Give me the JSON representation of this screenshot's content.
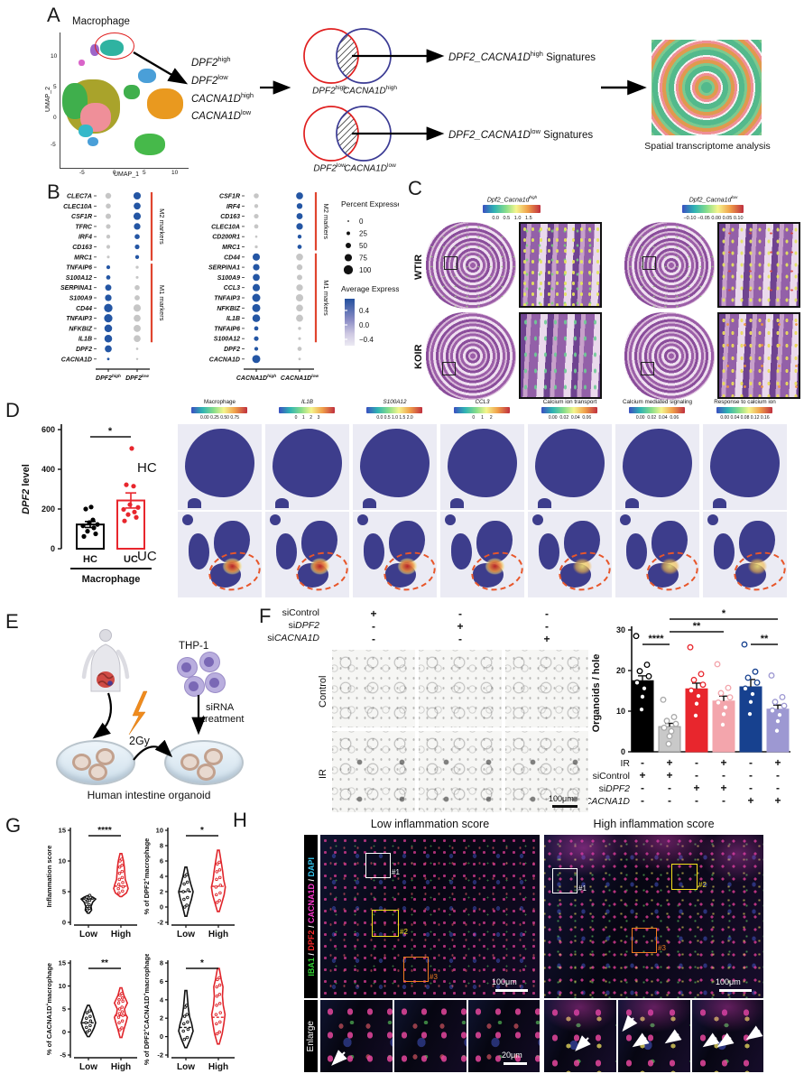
{
  "figure": {
    "panel_labels": {
      "a": "A",
      "b": "B",
      "c": "C",
      "d": "D",
      "e": "E",
      "f": "F",
      "g": "G",
      "h": "H"
    }
  },
  "panel_a": {
    "umap": {
      "title": "Macrophage",
      "xlabel": "UMAP_1",
      "ylabel": "UMAP_2",
      "xticks": [
        "-5",
        "0",
        "5",
        "10"
      ],
      "yticks": [
        "10",
        "5",
        "0",
        "-5"
      ]
    },
    "subset_labels": [
      "~DPF2~^high^",
      "~DPF2~^low^",
      "~CACNA1D~^high^",
      "~CACNA1D~^low^"
    ],
    "venns": [
      {
        "left": "~DPF2~^high^",
        "right": "~CACNA1D~^high^",
        "result": "~DPF2_CACNA1D~^high^ Signatures"
      },
      {
        "left": "~DPF2~^low^",
        "right": "~CACNA1D~^low^",
        "result": "~DPF2_CACNA1D~^low^ Signatures"
      }
    ],
    "spatial_caption": "Spatial transcriptome analysis"
  },
  "panel_b": {
    "legend": {
      "percent_title": "Percent Expressed",
      "percent_ticks": [
        "0",
        "25",
        "50",
        "75",
        "100"
      ],
      "avg_title": "Average Expression",
      "avg_ticks": [
        "0.4",
        "0.0",
        "−0.4"
      ]
    }
  },
  "panel_c": {
    "colorbars": [
      {
        "title": "~Dpf2_Cacna1d~^high^",
        "ticks_text": "0.0   0.5   1.0   1.5"
      },
      {
        "title": "~Dpf2_Cacna1d~^low^",
        "ticks_text": "−0.10 −0.05 0.00 0.05 0.10"
      }
    ],
    "rows": [
      "WTIR",
      "KOIR"
    ]
  },
  "panel_d": {
    "rows": [
      "HC",
      "UC"
    ],
    "maps": {
      "cols": [
        {
          "title": "Macrophage",
          "ticks": "0.00 0.25 0.50 0.75"
        },
        {
          "title": "~IL1B~",
          "ticks": "0    1    2    3"
        },
        {
          "title": "~S100A12~",
          "ticks": "0.0 0.5 1.0 1.5 2.0"
        },
        {
          "title": "~CCL3~",
          "ticks": "0     1     2"
        },
        {
          "title": "Calcium ion transport",
          "ticks": "0.00  0.02  0.04  0.06"
        },
        {
          "title": "Calcium mediated signaling",
          "ticks": "0.00  0.02  0.04  0.06"
        },
        {
          "title": "Response to calcium ion",
          "ticks": "0.00 0.04 0.08 0.12 0.16"
        }
      ]
    }
  },
  "panel_e": {
    "thp1": "THP-1",
    "sirna1": "siRNA",
    "sirna2": "treatment",
    "dose": "2Gy",
    "caption": "Human intestine organoid"
  },
  "panel_f": {
    "conditions": [
      {
        "label": "siControl",
        "values": [
          "+",
          "-",
          "-"
        ]
      },
      {
        "label": "si~DPF2~",
        "values": [
          "-",
          "+",
          "-"
        ]
      },
      {
        "label": "si~CACNA1D~",
        "values": [
          "-",
          "-",
          "+"
        ]
      }
    ],
    "rows": [
      "Control",
      "IR"
    ],
    "scale": "100μm"
  },
  "panel_h": {
    "titles": [
      "Low inflammation score",
      "High inflammation score"
    ],
    "channel_parts": [
      {
        "t": "IBA1",
        "c": "#35d435"
      },
      {
        "t": " / ",
        "c": "#ffffff"
      },
      {
        "t": "DPF2",
        "c": "#ff2a2a"
      },
      {
        "t": " / ",
        "c": "#ffffff"
      },
      {
        "t": "CACNA1D",
        "c": "#ff3ad1"
      },
      {
        "t": " / ",
        "c": "#ffffff"
      },
      {
        "t": "DAPI",
        "c": "#37c8f0"
      }
    ],
    "enlarge": "Enlarge",
    "boxes": [
      "#1",
      "#2",
      "#3"
    ],
    "scale_main": "100μm",
    "scale_enlarge": "20μm"
  },
  "chart_data": [
    {
      "id": "dotplot_left",
      "type": "dotplot",
      "genes": [
        "CLEC7A",
        "CLEC10A",
        "CSF1R",
        "TFRC",
        "IRF4",
        "CD163",
        "MRC1",
        "TNFAIP6",
        "S100A12",
        "SERPINA1",
        "S100A9",
        "CD44",
        "TNFAIP3",
        "NFKBIZ",
        "IL1B",
        "DPF2",
        "CACNA1D"
      ],
      "columns": [
        "~DPF2~^high^",
        "~DPF2~^low^"
      ],
      "dots": [
        [
          [
            55,
            "g"
          ],
          [
            75,
            "b"
          ]
        ],
        [
          [
            45,
            "g"
          ],
          [
            70,
            "b"
          ]
        ],
        [
          [
            50,
            "g"
          ],
          [
            75,
            "b"
          ]
        ],
        [
          [
            40,
            "g"
          ],
          [
            65,
            "b"
          ]
        ],
        [
          [
            30,
            "g"
          ],
          [
            45,
            "b"
          ]
        ],
        [
          [
            28,
            "g"
          ],
          [
            40,
            "b"
          ]
        ],
        [
          [
            15,
            "g"
          ],
          [
            30,
            "b"
          ]
        ],
        [
          [
            28,
            "b"
          ],
          [
            18,
            "g"
          ]
        ],
        [
          [
            35,
            "b"
          ],
          [
            15,
            "g"
          ]
        ],
        [
          [
            60,
            "b"
          ],
          [
            45,
            "g"
          ]
        ],
        [
          [
            65,
            "b"
          ],
          [
            48,
            "g"
          ]
        ],
        [
          [
            90,
            "b"
          ],
          [
            75,
            "g"
          ]
        ],
        [
          [
            88,
            "b"
          ],
          [
            70,
            "g"
          ]
        ],
        [
          [
            80,
            "b"
          ],
          [
            72,
            "g"
          ]
        ],
        [
          [
            80,
            "b"
          ],
          [
            70,
            "g"
          ]
        ],
        [
          [
            70,
            "b"
          ],
          [
            10,
            "g"
          ]
        ],
        [
          [
            12,
            "b"
          ],
          [
            8,
            "g"
          ]
        ]
      ],
      "brackets": [
        {
          "label": "M2 markers",
          "from": 0,
          "to": 6
        },
        {
          "label": "M1 markers",
          "from": 7,
          "to": 14
        }
      ]
    },
    {
      "id": "dotplot_right",
      "type": "dotplot",
      "genes": [
        "CSF1R",
        "IRF4",
        "CD163",
        "CLEC10A",
        "CD200R1",
        "MRC1",
        "CD44",
        "SERPINA1",
        "S100A9",
        "CCL3",
        "TNFAIP3",
        "NFKBIZ",
        "IL1B",
        "TNFAIP6",
        "S100A12",
        "DPF2",
        "CACNA1D"
      ],
      "columns": [
        "~CACNA1D~^high^",
        "~CACNA1D~^low^"
      ],
      "dots": [
        [
          [
            45,
            "g"
          ],
          [
            70,
            "b"
          ]
        ],
        [
          [
            30,
            "g"
          ],
          [
            55,
            "b"
          ]
        ],
        [
          [
            40,
            "g"
          ],
          [
            60,
            "b"
          ]
        ],
        [
          [
            35,
            "g"
          ],
          [
            65,
            "b"
          ]
        ],
        [
          [
            10,
            "g"
          ],
          [
            30,
            "b"
          ]
        ],
        [
          [
            18,
            "g"
          ],
          [
            35,
            "b"
          ]
        ],
        [
          [
            75,
            "b"
          ],
          [
            70,
            "g"
          ]
        ],
        [
          [
            65,
            "b"
          ],
          [
            55,
            "g"
          ]
        ],
        [
          [
            70,
            "b"
          ],
          [
            50,
            "g"
          ]
        ],
        [
          [
            75,
            "b"
          ],
          [
            65,
            "g"
          ]
        ],
        [
          [
            85,
            "b"
          ],
          [
            75,
            "g"
          ]
        ],
        [
          [
            85,
            "b"
          ],
          [
            70,
            "g"
          ]
        ],
        [
          [
            80,
            "b"
          ],
          [
            72,
            "g"
          ]
        ],
        [
          [
            35,
            "b"
          ],
          [
            20,
            "g"
          ]
        ],
        [
          [
            40,
            "b"
          ],
          [
            15,
            "g"
          ]
        ],
        [
          [
            30,
            "b"
          ],
          [
            35,
            "g"
          ]
        ],
        [
          [
            85,
            "b"
          ],
          [
            12,
            "g"
          ]
        ]
      ],
      "brackets": [
        {
          "label": "M2 markers",
          "from": 0,
          "to": 5
        },
        {
          "label": "M1 markers",
          "from": 6,
          "to": 14
        }
      ]
    },
    {
      "id": "dpf2_level",
      "type": "bar",
      "ylabel": "~DPF2~ level",
      "yticks": [
        0,
        200,
        400,
        600
      ],
      "ylim": [
        0,
        600
      ],
      "categories": [
        "HC",
        "UC"
      ],
      "group_axis": "Macrophage",
      "sig": "*",
      "means": [
        122,
        243
      ],
      "errors": [
        15,
        38
      ],
      "colors": [
        "#000000",
        "#e8262d"
      ],
      "points": [
        [
          62,
          75,
          88,
          105,
          115,
          122,
          132,
          145,
          200,
          210
        ],
        [
          140,
          158,
          172,
          185,
          198,
          208,
          222,
          315,
          322,
          505
        ]
      ]
    },
    {
      "id": "organoids",
      "type": "bar",
      "ylabel": "Organoids / hole",
      "yticks": [
        0,
        10,
        20,
        30
      ],
      "ylim": [
        0,
        30
      ],
      "values": [
        17.5,
        6.2,
        15.5,
        12.5,
        16,
        10.5
      ],
      "errors": [
        1.2,
        0.8,
        1.4,
        1.2,
        1.8,
        1.0
      ],
      "colors": [
        "#000000",
        "#c9c9c9",
        "#e8262d",
        "#f3a5ac",
        "#17418f",
        "#9d98d2"
      ],
      "sig": [
        {
          "from": 1,
          "to": 5,
          "label": "*"
        },
        {
          "from": 1,
          "to": 3,
          "label": "**"
        },
        {
          "from": 0,
          "to": 1,
          "label": "****"
        },
        {
          "from": 4,
          "to": 5,
          "label": "**"
        }
      ],
      "matrix": [
        {
          "label": "IR",
          "values": [
            "-",
            "+",
            "-",
            "+",
            "-",
            "+"
          ]
        },
        {
          "label": "siControl",
          "values": [
            "+",
            "+",
            "-",
            "-",
            "-",
            "-"
          ]
        },
        {
          "label": "si~DPF2~",
          "values": [
            "-",
            "-",
            "+",
            "+",
            "-",
            "-"
          ]
        },
        {
          "label": "si~CACNA1D~",
          "values": [
            "-",
            "-",
            "-",
            "-",
            "+",
            "+"
          ]
        }
      ]
    },
    {
      "id": "violins",
      "type": "violin",
      "plots": [
        {
          "ylabel": "Inflammation score",
          "ymin": 0,
          "ymax": 15,
          "yticks": [
            0,
            5,
            10,
            15
          ],
          "sig": "****",
          "xlabels": [
            "Low",
            "High"
          ],
          "low": {
            "shape": [
              [
                1.5,
                0.06
              ],
              [
                2.0,
                0.22
              ],
              [
                2.6,
                0.18
              ],
              [
                3.3,
                0.3
              ],
              [
                3.8,
                0.5
              ],
              [
                4.1,
                0.3
              ],
              [
                4.35,
                0.06
              ]
            ],
            "median": 3.8
          },
          "high": {
            "shape": [
              [
                4.2,
                0.06
              ],
              [
                4.8,
                0.38
              ],
              [
                5.5,
                0.5
              ],
              [
                6.2,
                0.42
              ],
              [
                7,
                0.3
              ],
              [
                8,
                0.27
              ],
              [
                9,
                0.24
              ],
              [
                10,
                0.18
              ],
              [
                11.2,
                0.06
              ]
            ],
            "median": 5.9
          }
        },
        {
          "ylabel": "% of DPF2^+^macrophage",
          "ymin": -2,
          "ymax": 10,
          "yticks": [
            -2,
            0,
            2,
            4,
            6,
            8,
            10
          ],
          "sig": "*",
          "xlabels": [
            "Low",
            "High"
          ],
          "low": {
            "shape": [
              [
                -1.2,
                0.06
              ],
              [
                0,
                0.22
              ],
              [
                1,
                0.38
              ],
              [
                2,
                0.5
              ],
              [
                3,
                0.34
              ],
              [
                4,
                0.2
              ],
              [
                5.2,
                0.06
              ]
            ],
            "median": 2
          },
          "high": {
            "shape": [
              [
                -0.6,
                0.06
              ],
              [
                0.6,
                0.25
              ],
              [
                1.6,
                0.4
              ],
              [
                2.6,
                0.48
              ],
              [
                3.6,
                0.36
              ],
              [
                4.6,
                0.3
              ],
              [
                5.6,
                0.22
              ],
              [
                7.4,
                0.06
              ]
            ],
            "median": 2.7
          }
        },
        {
          "ylabel": "% of CACNA1D^+^macrophage",
          "ymin": -5,
          "ymax": 15,
          "yticks": [
            -5,
            0,
            5,
            10,
            15
          ],
          "sig": "**",
          "xlabels": [
            "Low",
            "High"
          ],
          "low": {
            "shape": [
              [
                -1,
                0.06
              ],
              [
                0,
                0.25
              ],
              [
                1,
                0.4
              ],
              [
                2,
                0.5
              ],
              [
                3,
                0.4
              ],
              [
                4.2,
                0.28
              ],
              [
                5.8,
                0.06
              ]
            ],
            "median": 2
          },
          "high": {
            "shape": [
              [
                -1.2,
                0.06
              ],
              [
                0.5,
                0.2
              ],
              [
                2,
                0.35
              ],
              [
                3.2,
                0.45
              ],
              [
                4,
                0.3
              ],
              [
                5,
                0.25
              ],
              [
                6.3,
                0.45
              ],
              [
                7,
                0.35
              ],
              [
                8,
                0.2
              ],
              [
                9.6,
                0.06
              ]
            ],
            "median": 3.6
          }
        },
        {
          "ylabel": "% of DPF2^+^CACNA1D^+^macrophage",
          "ymin": -2,
          "ymax": 8,
          "yticks": [
            -2,
            0,
            2,
            4,
            6,
            8
          ],
          "sig": "*",
          "xlabels": [
            "Low",
            "High"
          ],
          "low": {
            "shape": [
              [
                -1.2,
                0.06
              ],
              [
                -0.3,
                0.3
              ],
              [
                0.6,
                0.5
              ],
              [
                1.4,
                0.4
              ],
              [
                2.2,
                0.25
              ],
              [
                3.2,
                0.16
              ],
              [
                5,
                0.06
              ]
            ],
            "median": 1
          },
          "high": {
            "shape": [
              [
                -0.8,
                0.06
              ],
              [
                0.3,
                0.26
              ],
              [
                1.4,
                0.38
              ],
              [
                2.4,
                0.46
              ],
              [
                3.4,
                0.34
              ],
              [
                4.4,
                0.28
              ],
              [
                5.4,
                0.32
              ],
              [
                6.2,
                0.2
              ],
              [
                7.4,
                0.06
              ]
            ],
            "median": 2.1
          }
        }
      ]
    }
  ]
}
